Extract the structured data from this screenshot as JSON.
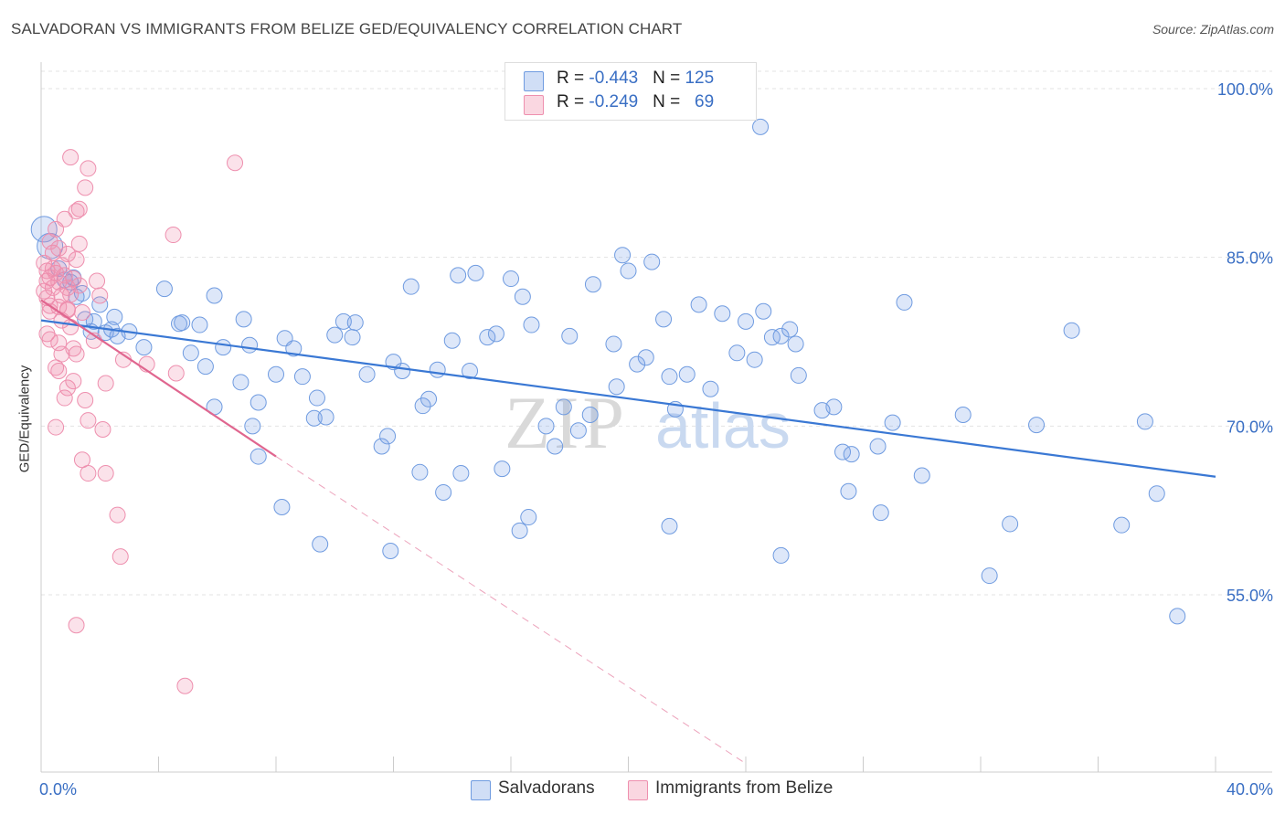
{
  "title": "SALVADORAN VS IMMIGRANTS FROM BELIZE GED/EQUIVALENCY CORRELATION CHART",
  "source": "Source: ZipAtlas.com",
  "watermark": {
    "zip": "ZIP",
    "atlas": "atlas"
  },
  "legend": {
    "row1": {
      "r_label": "R = ",
      "r_value": "-0.443",
      "n_label": "N = ",
      "n_value": "125"
    },
    "row2": {
      "r_label": "R = ",
      "r_value": "-0.249",
      "n_label": "N = ",
      "n_value": "69"
    }
  },
  "bottom_legend": {
    "series1": "Salvadorans",
    "series2": "Immigrants from Belize"
  },
  "colors": {
    "blue_fill": "rgba(120,160,230,0.25)",
    "blue_stroke": "#6f9be0",
    "blue_line": "#3a78d4",
    "pink_fill": "rgba(240,140,170,0.25)",
    "pink_stroke": "#ee8fae",
    "pink_line": "#e0668f",
    "tick_label": "#3a6fc4",
    "grid": "#e3e3e3"
  },
  "chart_data": {
    "type": "scatter",
    "title": "SALVADORAN VS IMMIGRANTS FROM BELIZE GED/EQUIVALENCY CORRELATION CHART",
    "xlabel": "",
    "ylabel": "GED/Equivalency",
    "xlim": [
      0,
      40
    ],
    "ylim": [
      40,
      103
    ],
    "x_tick_labels": [
      "0.0%",
      "40.0%"
    ],
    "y_ticks": [
      55,
      70,
      85,
      100
    ],
    "y_tick_labels": [
      "55.0%",
      "70.0%",
      "85.0%",
      "100.0%"
    ],
    "grid": true,
    "legend_position": "top-center",
    "series": [
      {
        "name": "Salvadorans",
        "color": "#6f9be0",
        "trend": {
          "x": [
            0,
            40
          ],
          "y": [
            79.4,
            65.5
          ],
          "style": "solid"
        },
        "points": [
          [
            0.1,
            87.5
          ],
          [
            0.3,
            86.0
          ],
          [
            0.6,
            84.0
          ],
          [
            0.8,
            83.0
          ],
          [
            1.0,
            82.8
          ],
          [
            1.1,
            83.2
          ],
          [
            1.4,
            81.8
          ],
          [
            1.2,
            81.5
          ],
          [
            1.5,
            79.5
          ],
          [
            1.8,
            79.3
          ],
          [
            1.7,
            78.4
          ],
          [
            2.0,
            80.8
          ],
          [
            2.2,
            78.3
          ],
          [
            2.4,
            78.6
          ],
          [
            2.5,
            79.7
          ],
          [
            2.6,
            78.0
          ],
          [
            3.0,
            78.4
          ],
          [
            4.2,
            82.2
          ],
          [
            3.5,
            77.0
          ],
          [
            4.7,
            79.1
          ],
          [
            4.8,
            79.2
          ],
          [
            5.1,
            76.5
          ],
          [
            5.4,
            79.0
          ],
          [
            5.6,
            75.3
          ],
          [
            5.9,
            81.6
          ],
          [
            6.2,
            77.0
          ],
          [
            6.8,
            73.9
          ],
          [
            6.9,
            79.5
          ],
          [
            7.1,
            77.2
          ],
          [
            5.9,
            71.7
          ],
          [
            7.4,
            72.1
          ],
          [
            7.2,
            70.0
          ],
          [
            8.0,
            74.6
          ],
          [
            8.3,
            77.8
          ],
          [
            8.6,
            76.9
          ],
          [
            8.9,
            74.4
          ],
          [
            9.3,
            70.7
          ],
          [
            9.4,
            72.5
          ],
          [
            9.7,
            70.8
          ],
          [
            10.0,
            78.1
          ],
          [
            10.3,
            79.3
          ],
          [
            10.6,
            77.9
          ],
          [
            10.7,
            79.2
          ],
          [
            11.1,
            74.6
          ],
          [
            11.6,
            68.2
          ],
          [
            11.8,
            69.1
          ],
          [
            12.0,
            75.7
          ],
          [
            12.3,
            74.9
          ],
          [
            12.6,
            82.4
          ],
          [
            13.0,
            71.8
          ],
          [
            13.2,
            72.4
          ],
          [
            13.5,
            75.0
          ],
          [
            14.0,
            77.6
          ],
          [
            14.2,
            83.4
          ],
          [
            14.6,
            74.9
          ],
          [
            14.8,
            83.6
          ],
          [
            15.2,
            77.9
          ],
          [
            15.5,
            78.2
          ],
          [
            15.7,
            66.2
          ],
          [
            16.0,
            83.1
          ],
          [
            16.4,
            81.5
          ],
          [
            16.7,
            79.0
          ],
          [
            17.2,
            70.0
          ],
          [
            17.5,
            68.2
          ],
          [
            17.8,
            71.7
          ],
          [
            18.0,
            78.0
          ],
          [
            18.3,
            69.6
          ],
          [
            18.8,
            82.6
          ],
          [
            19.5,
            77.3
          ],
          [
            19.8,
            85.2
          ],
          [
            20.0,
            83.8
          ],
          [
            20.3,
            75.5
          ],
          [
            20.6,
            76.1
          ],
          [
            20.8,
            84.6
          ],
          [
            21.2,
            79.5
          ],
          [
            21.4,
            74.4
          ],
          [
            21.6,
            71.5
          ],
          [
            22.0,
            74.6
          ],
          [
            22.4,
            80.8
          ],
          [
            22.8,
            73.3
          ],
          [
            23.2,
            80.0
          ],
          [
            23.7,
            76.5
          ],
          [
            24.0,
            79.3
          ],
          [
            24.3,
            75.9
          ],
          [
            24.6,
            80.2
          ],
          [
            24.9,
            77.9
          ],
          [
            25.2,
            78.0
          ],
          [
            25.5,
            78.6
          ],
          [
            25.7,
            77.3
          ],
          [
            25.8,
            74.5
          ],
          [
            27.0,
            71.7
          ],
          [
            27.3,
            67.7
          ],
          [
            27.5,
            64.2
          ],
          [
            27.6,
            67.5
          ],
          [
            28.6,
            62.3
          ],
          [
            28.5,
            68.2
          ],
          [
            29.0,
            70.3
          ],
          [
            29.4,
            81.0
          ],
          [
            30.0,
            65.6
          ],
          [
            31.4,
            71.0
          ],
          [
            32.3,
            56.7
          ],
          [
            33.0,
            61.3
          ],
          [
            33.9,
            70.1
          ],
          [
            35.1,
            78.5
          ],
          [
            36.8,
            61.2
          ],
          [
            37.6,
            70.4
          ],
          [
            38.0,
            64.0
          ],
          [
            38.7,
            53.1
          ],
          [
            24.5,
            96.6
          ],
          [
            7.4,
            67.3
          ],
          [
            8.2,
            62.8
          ],
          [
            9.5,
            59.5
          ],
          [
            11.9,
            58.9
          ],
          [
            12.9,
            65.9
          ],
          [
            13.7,
            64.1
          ],
          [
            14.3,
            65.8
          ],
          [
            16.3,
            60.7
          ],
          [
            16.6,
            61.9
          ],
          [
            18.7,
            71.0
          ],
          [
            19.6,
            73.5
          ],
          [
            21.4,
            61.1
          ],
          [
            25.2,
            58.5
          ],
          [
            26.6,
            71.4
          ]
        ]
      },
      {
        "name": "Immigrants from Belize",
        "color": "#ee8fae",
        "trend": {
          "x": [
            0,
            8.0
          ],
          "y": [
            81.2,
            67.3
          ],
          "style": "solid",
          "dashed_to": [
            24.0,
            40.0
          ]
        },
        "points": [
          [
            0.1,
            84.5
          ],
          [
            0.2,
            83.8
          ],
          [
            0.3,
            83.2
          ],
          [
            0.1,
            82.0
          ],
          [
            0.2,
            81.4
          ],
          [
            0.3,
            80.7
          ],
          [
            0.4,
            82.3
          ],
          [
            0.5,
            83.6
          ],
          [
            0.6,
            82.8
          ],
          [
            0.7,
            81.6
          ],
          [
            0.8,
            83.4
          ],
          [
            0.9,
            82.3
          ],
          [
            1.0,
            81.7
          ],
          [
            0.4,
            85.4
          ],
          [
            0.6,
            85.8
          ],
          [
            0.9,
            85.3
          ],
          [
            1.3,
            86.2
          ],
          [
            0.5,
            87.5
          ],
          [
            0.8,
            88.4
          ],
          [
            1.2,
            89.1
          ],
          [
            0.2,
            78.2
          ],
          [
            0.3,
            77.7
          ],
          [
            0.6,
            77.4
          ],
          [
            0.7,
            76.4
          ],
          [
            1.0,
            78.8
          ],
          [
            1.2,
            76.4
          ],
          [
            1.4,
            80.1
          ],
          [
            0.5,
            75.2
          ],
          [
            0.6,
            74.9
          ],
          [
            0.9,
            73.4
          ],
          [
            1.1,
            74.0
          ],
          [
            0.8,
            72.5
          ],
          [
            1.5,
            72.3
          ],
          [
            1.6,
            70.5
          ],
          [
            0.5,
            69.9
          ],
          [
            1.4,
            67.0
          ],
          [
            1.6,
            65.8
          ],
          [
            2.2,
            65.8
          ],
          [
            2.1,
            69.7
          ],
          [
            1.8,
            77.6
          ],
          [
            2.8,
            75.9
          ],
          [
            2.2,
            73.8
          ],
          [
            1.0,
            93.9
          ],
          [
            1.6,
            92.9
          ],
          [
            1.5,
            91.2
          ],
          [
            1.3,
            89.3
          ],
          [
            3.6,
            75.5
          ],
          [
            4.6,
            74.7
          ],
          [
            4.5,
            87.0
          ],
          [
            6.6,
            93.4
          ],
          [
            2.6,
            62.1
          ],
          [
            2.7,
            58.4
          ],
          [
            1.2,
            52.3
          ],
          [
            4.9,
            46.9
          ],
          [
            0.3,
            80.2
          ],
          [
            0.7,
            79.4
          ],
          [
            0.9,
            80.4
          ],
          [
            1.1,
            83.1
          ],
          [
            1.3,
            82.5
          ],
          [
            1.9,
            82.9
          ],
          [
            2.0,
            81.6
          ],
          [
            0.4,
            84.0
          ],
          [
            0.7,
            84.3
          ],
          [
            0.3,
            86.4
          ],
          [
            0.2,
            82.9
          ],
          [
            0.9,
            80.3
          ],
          [
            1.2,
            84.8
          ],
          [
            0.6,
            80.6
          ],
          [
            1.1,
            76.9
          ]
        ]
      }
    ]
  }
}
